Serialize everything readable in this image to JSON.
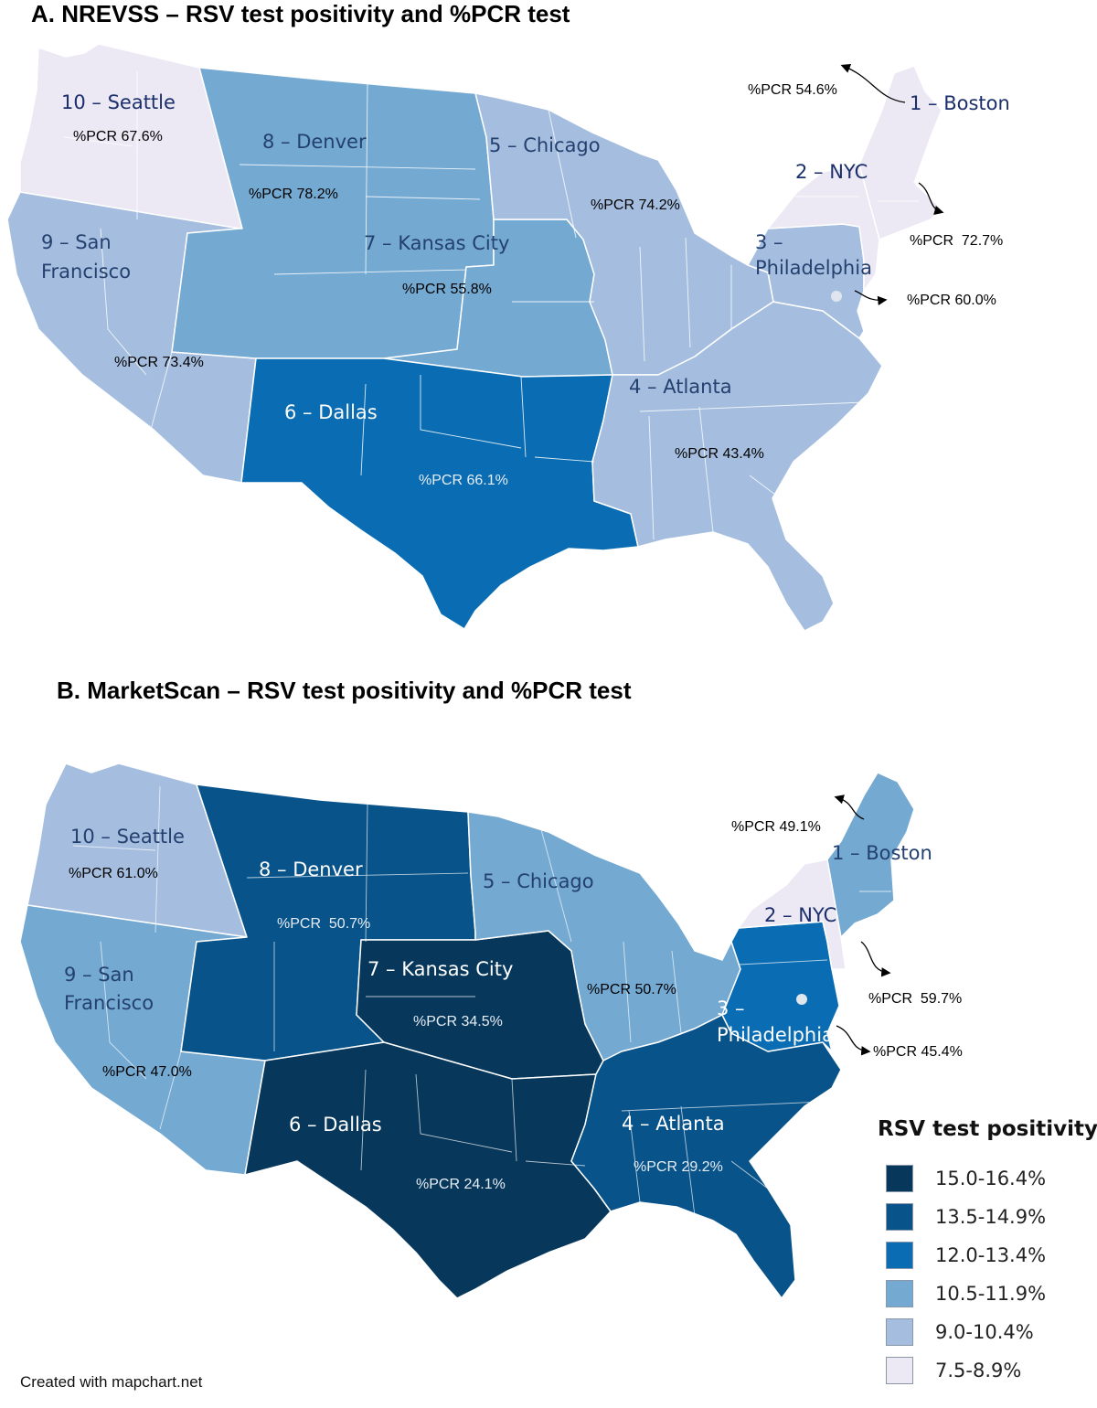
{
  "panel_a": {
    "title": "A. NREVSS – RSV test positivity and %PCR test",
    "regions": [
      {
        "name": "1 – Boston",
        "pcr": "%PCR 54.6%",
        "bin": "7.5-8.9%"
      },
      {
        "name": "2 – NYC",
        "pcr": "%PCR  72.7%",
        "bin": "7.5-8.9%"
      },
      {
        "name": "3 – Philadelphia",
        "pcr": "%PCR 60.0%",
        "bin": "9.0-10.4%"
      },
      {
        "name": "4 – Atlanta",
        "pcr": "%PCR 43.4%",
        "bin": "9.0-10.4%"
      },
      {
        "name": "5 – Chicago",
        "pcr": "%PCR 74.2%",
        "bin": "9.0-10.4%"
      },
      {
        "name": "6 – Dallas",
        "pcr": "%PCR 66.1%",
        "bin": "12.0-13.4%"
      },
      {
        "name": "7 – Kansas City",
        "pcr": "%PCR 55.8%",
        "bin": "10.5-11.9%"
      },
      {
        "name": "8 – Denver",
        "pcr": "%PCR 78.2%",
        "bin": "10.5-11.9%"
      },
      {
        "name": "9 – San Francisco",
        "pcr": "%PCR 73.4%",
        "bin": "9.0-10.4%"
      },
      {
        "name": "10 – Seattle",
        "pcr": "%PCR 67.6%",
        "bin": "7.5-8.9%"
      }
    ]
  },
  "panel_b": {
    "title": "B. MarketScan – RSV test positivity and %PCR test",
    "regions": [
      {
        "name": "1 – Boston",
        "pcr": "%PCR 49.1%",
        "bin": "10.5-11.9%"
      },
      {
        "name": "2 – NYC",
        "pcr": "%PCR  59.7%",
        "bin": "7.5-8.9%"
      },
      {
        "name": "3 – Philadelphia",
        "pcr": "%PCR 45.4%",
        "bin": "12.0-13.4%"
      },
      {
        "name": "4 – Atlanta",
        "pcr": "%PCR 29.2%",
        "bin": "13.5-14.9%"
      },
      {
        "name": "5 – Chicago",
        "pcr": "%PCR 50.7%",
        "bin": "10.5-11.9%"
      },
      {
        "name": "6 – Dallas",
        "pcr": "%PCR 24.1%",
        "bin": "15.0-16.4%"
      },
      {
        "name": "7 – Kansas City",
        "pcr": "%PCR 34.5%",
        "bin": "15.0-16.4%"
      },
      {
        "name": "8 – Denver",
        "pcr": "%PCR  50.7%",
        "bin": "13.5-14.9%"
      },
      {
        "name": "9 – San Francisco",
        "pcr": "%PCR 47.0%",
        "bin": "10.5-11.9%"
      },
      {
        "name": "10 – Seattle",
        "pcr": "%PCR 61.0%",
        "bin": "9.0-10.4%"
      }
    ]
  },
  "legend": {
    "title": "RSV test positivity",
    "items": [
      {
        "label": "15.0-16.4%",
        "color": "#07375a"
      },
      {
        "label": "13.5-14.9%",
        "color": "#08538a"
      },
      {
        "label": "12.0-13.4%",
        "color": "#0a6db3"
      },
      {
        "label": "10.5-11.9%",
        "color": "#74a9d2"
      },
      {
        "label": "9.0-10.4%",
        "color": "#a5bedf"
      },
      {
        "label": "7.5-8.9%",
        "color": "#ece8f4"
      }
    ]
  },
  "credit": "Created with mapchart.net"
}
